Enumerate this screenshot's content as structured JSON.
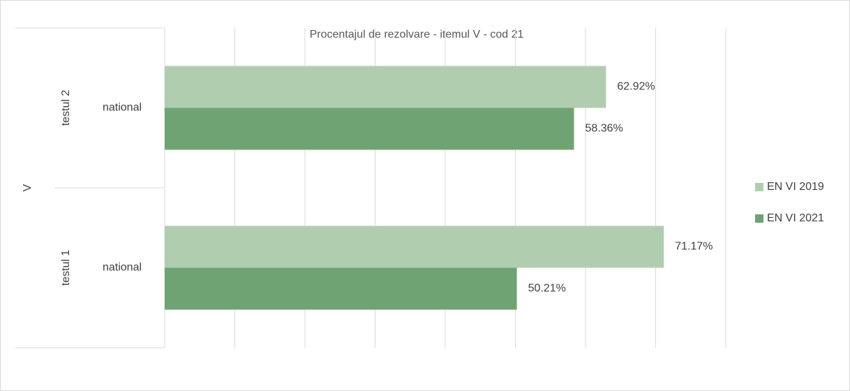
{
  "chart_data": {
    "type": "hbar",
    "title": "Procentajul de rezolvare - itemul V - cod 21",
    "outer_group": "V",
    "category_groups": [
      "testul 2",
      "testul 1"
    ],
    "categories": [
      "national",
      "national"
    ],
    "series": [
      {
        "name": "EN VI 2019",
        "color": "#b0cdb0",
        "values": [
          62.92,
          71.17
        ],
        "value_labels": [
          "62.92%",
          "71.17%"
        ]
      },
      {
        "name": "EN VI 2021",
        "color": "#70a373",
        "values": [
          58.36,
          50.21
        ],
        "value_labels": [
          "58.36%",
          "50.21%"
        ]
      }
    ],
    "xlim": [
      0,
      80
    ],
    "xticks": [
      0,
      10,
      20,
      30,
      40,
      50,
      60,
      70,
      80
    ],
    "grid": true,
    "legend": "right"
  }
}
